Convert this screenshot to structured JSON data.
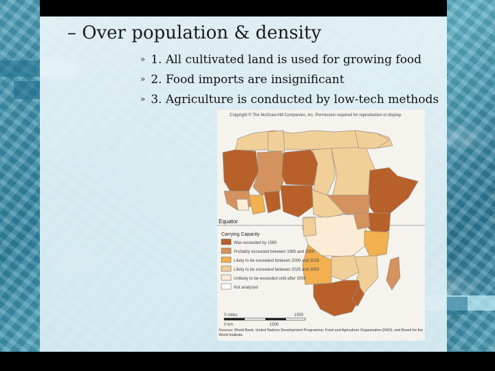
{
  "slide": {
    "heading": "– Over population & density",
    "bullet_marker": "»",
    "bullets": [
      "1. All cultivated land is used for growing food",
      "2. Food imports are insignificant",
      "3. Agriculture is conducted by low-tech methods"
    ]
  },
  "map": {
    "copyright": "Copyright © The McGraw-Hill Companies, Inc. Permission required for reproduction or display.",
    "equator_label": "Equator",
    "legend": {
      "title": "Carrying Capacity",
      "items": [
        {
          "label": "Was exceeded by 1985",
          "color": "#b8602a"
        },
        {
          "label": "Probably exceeded between 1985 and 2000",
          "color": "#d4925f"
        },
        {
          "label": "Likely to be exceeded between 2000 and 2025",
          "color": "#f2b04e"
        },
        {
          "label": "Likely to be exceeded between 2025 and 2050",
          "color": "#f1cf98"
        },
        {
          "label": "Unlikely to be exceeded until after 2050",
          "color": "#fbecd5"
        },
        {
          "label": "Not analyzed",
          "color": "#ffffff"
        }
      ]
    },
    "scale": {
      "miles_label": "0 miles",
      "miles_value": "1500",
      "km_label": "0 km",
      "km_value": "1500"
    },
    "source": "Sources: World Bank; United Nations Development Programme; Food and Agriculture Organization (FAO); and Breed for the World Institute."
  }
}
